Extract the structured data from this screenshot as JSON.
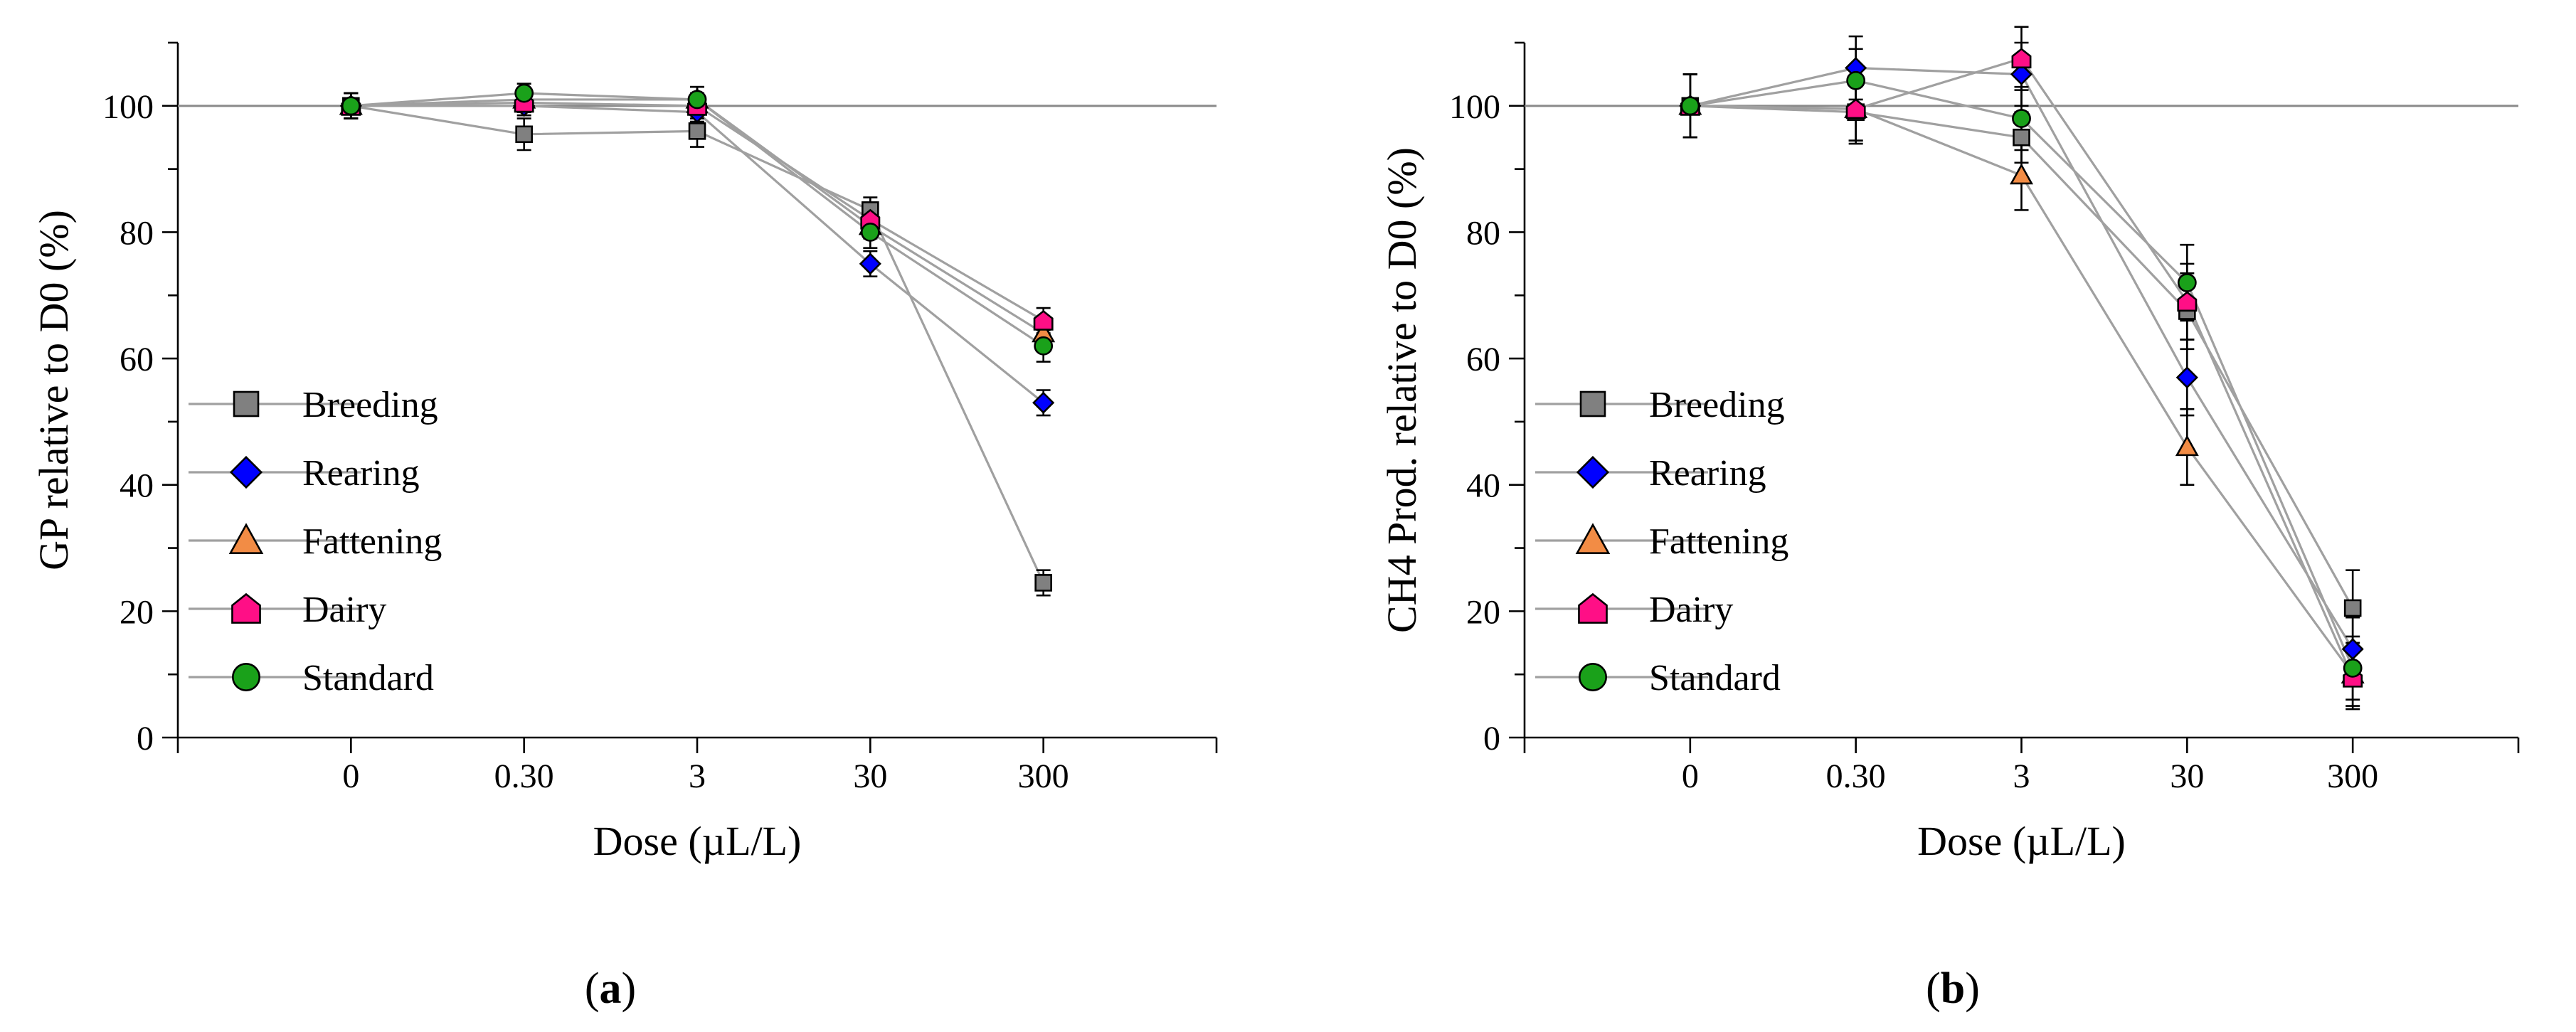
{
  "chart_data": [
    {
      "type": "line",
      "panel_label_open": "(",
      "panel_letter": "a",
      "panel_label_close": ")",
      "title": "",
      "xlabel": "Dose (µL/L)",
      "ylabel": "GP relative to D0 (%)",
      "categories": [
        "0",
        "0.30",
        "3",
        "30",
        "300"
      ],
      "ylim": [
        0,
        110
      ],
      "yticks": [
        0,
        20,
        40,
        60,
        80,
        100
      ],
      "reference_line": 100,
      "legend_position": "left",
      "series": [
        {
          "name": "Breeding",
          "values": [
            100,
            95.5,
            96,
            83.5,
            24.5
          ],
          "errors": [
            2,
            2.5,
            2.5,
            2,
            2
          ],
          "color": "#808080",
          "marker": "square"
        },
        {
          "name": "Rearing",
          "values": [
            100,
            100,
            99,
            75,
            53
          ],
          "errors": [
            2,
            1.5,
            1.5,
            2,
            2
          ],
          "color": "#0000ff",
          "marker": "diamond"
        },
        {
          "name": "Fattening",
          "values": [
            100,
            101,
            101,
            81,
            64
          ],
          "errors": [
            2,
            1.5,
            2,
            2,
            2
          ],
          "color": "#f28c45",
          "marker": "triangle"
        },
        {
          "name": "Dairy",
          "values": [
            100,
            100.5,
            100,
            82,
            66
          ],
          "errors": [
            2,
            1.5,
            2,
            2,
            2
          ],
          "color": "#ff0f86",
          "marker": "pentagon"
        },
        {
          "name": "Standard",
          "values": [
            100,
            102,
            101,
            80,
            62
          ],
          "errors": [
            2,
            1.5,
            2,
            2.5,
            2.5
          ],
          "color": "#1aa11a",
          "marker": "circle"
        }
      ]
    },
    {
      "type": "line",
      "panel_label_open": "(",
      "panel_letter": "b",
      "panel_label_close": ")",
      "title": "",
      "xlabel": "Dose (µL/L)",
      "ylabel": "CH4 Prod. relative to D0 (%)",
      "categories": [
        "0",
        "0.30",
        "3",
        "30",
        "300"
      ],
      "ylim": [
        0,
        110
      ],
      "yticks": [
        0,
        20,
        40,
        60,
        80,
        100
      ],
      "reference_line": 100,
      "legend_position": "left",
      "series": [
        {
          "name": "Breeding",
          "values": [
            100,
            99,
            95,
            67.5,
            20.5
          ],
          "errors": [
            5,
            5,
            4,
            6,
            6
          ],
          "color": "#808080",
          "marker": "square"
        },
        {
          "name": "Rearing",
          "values": [
            100,
            106,
            105,
            57,
            14
          ],
          "errors": [
            5,
            5,
            5,
            6,
            5
          ],
          "color": "#0000ff",
          "marker": "diamond"
        },
        {
          "name": "Fattening",
          "values": [
            100,
            99.5,
            89,
            46,
            10
          ],
          "errors": [
            5,
            5,
            5.5,
            6,
            5
          ],
          "color": "#f28c45",
          "marker": "triangle"
        },
        {
          "name": "Dairy",
          "values": [
            100,
            99.5,
            107.5,
            69,
            9.5
          ],
          "errors": [
            5,
            5,
            5,
            6,
            5
          ],
          "color": "#ff0f86",
          "marker": "pentagon"
        },
        {
          "name": "Standard",
          "values": [
            100,
            104,
            98,
            72,
            11
          ],
          "errors": [
            5,
            5,
            5,
            6,
            5
          ],
          "color": "#1aa11a",
          "marker": "circle"
        }
      ]
    }
  ]
}
